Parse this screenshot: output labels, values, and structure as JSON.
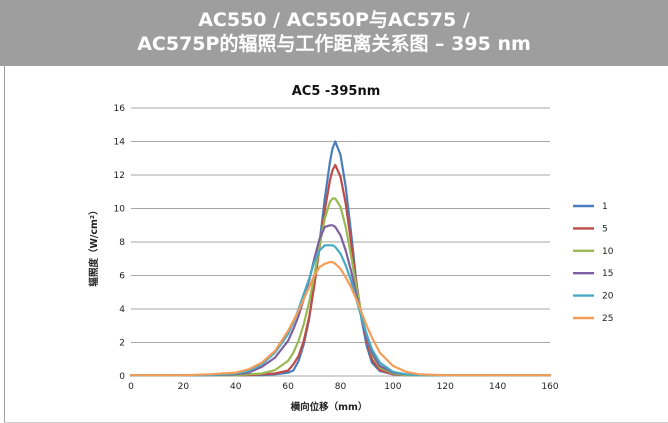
{
  "header": {
    "title_line1": "AC550 / AC550P与AC575 /",
    "title_line2": "AC575P的辐照与工作距离关系图 – 395 nm",
    "bg_color": "#9e9e9e"
  },
  "chart_data": {
    "type": "line",
    "title": "AC5 -395nm",
    "xlabel": "横向位移（mm）",
    "ylabel": "辐照度（W/cm²）",
    "xlim": [
      0,
      160
    ],
    "ylim": [
      0,
      16
    ],
    "x_ticks": [
      0,
      20,
      40,
      60,
      80,
      100,
      120,
      140,
      160
    ],
    "y_ticks": [
      0,
      2,
      4,
      6,
      8,
      10,
      12,
      14,
      16
    ],
    "grid": "horizontal",
    "legend_position": "right",
    "x": [
      0,
      10,
      20,
      30,
      40,
      45,
      50,
      55,
      60,
      62,
      64,
      66,
      68,
      70,
      72,
      74,
      76,
      77,
      78,
      80,
      82,
      84,
      86,
      88,
      90,
      92,
      95,
      100,
      105,
      110,
      120,
      130,
      140,
      160
    ],
    "series": [
      {
        "name": "1",
        "color": "#4a7ebb",
        "peak_x": 77.5,
        "values": [
          0.05,
          0.05,
          0.05,
          0.05,
          0.05,
          0.05,
          0.05,
          0.1,
          0.2,
          0.33,
          0.9,
          1.9,
          3.4,
          5.5,
          8.0,
          10.6,
          12.8,
          13.6,
          14.0,
          13.2,
          11.3,
          8.6,
          5.7,
          3.4,
          1.8,
          0.8,
          0.3,
          0.1,
          0.05,
          0.05,
          0.05,
          0.05,
          0.05,
          0.05
        ]
      },
      {
        "name": "5",
        "color": "#be4b48",
        "peak_x": 77.5,
        "values": [
          0.05,
          0.05,
          0.05,
          0.05,
          0.05,
          0.05,
          0.1,
          0.15,
          0.32,
          0.7,
          1.2,
          2.1,
          3.5,
          5.4,
          7.7,
          9.9,
          11.7,
          12.3,
          12.6,
          11.9,
          10.3,
          8.0,
          5.6,
          3.6,
          2.1,
          1.0,
          0.35,
          0.1,
          0.05,
          0.05,
          0.05,
          0.05,
          0.05,
          0.05
        ]
      },
      {
        "name": "10",
        "color": "#98b954",
        "peak_x": 77.0,
        "values": [
          0.05,
          0.05,
          0.05,
          0.05,
          0.05,
          0.1,
          0.15,
          0.35,
          0.9,
          1.4,
          2.1,
          3.1,
          4.4,
          6.0,
          7.8,
          9.4,
          10.4,
          10.6,
          10.6,
          10.1,
          8.9,
          7.2,
          5.4,
          3.7,
          2.3,
          1.3,
          0.5,
          0.15,
          0.05,
          0.05,
          0.05,
          0.05,
          0.05,
          0.05
        ]
      },
      {
        "name": "15",
        "color": "#7d60a0",
        "peak_x": 75.5,
        "values": [
          0.05,
          0.05,
          0.05,
          0.05,
          0.1,
          0.2,
          0.55,
          1.1,
          2.1,
          2.8,
          3.6,
          4.6,
          5.7,
          7.0,
          8.2,
          8.9,
          9.0,
          9.0,
          8.9,
          8.4,
          7.5,
          6.3,
          4.9,
          3.5,
          2.3,
          1.4,
          0.6,
          0.2,
          0.1,
          0.05,
          0.05,
          0.05,
          0.05,
          0.05
        ]
      },
      {
        "name": "20",
        "color": "#46aac5",
        "peak_x": 75.5,
        "values": [
          0.05,
          0.05,
          0.05,
          0.05,
          0.15,
          0.3,
          0.7,
          1.4,
          2.5,
          3.2,
          4.0,
          4.9,
          5.8,
          6.8,
          7.5,
          7.8,
          7.8,
          7.8,
          7.7,
          7.3,
          6.6,
          5.7,
          4.6,
          3.5,
          2.5,
          1.6,
          0.8,
          0.25,
          0.1,
          0.05,
          0.05,
          0.05,
          0.05,
          0.05
        ]
      },
      {
        "name": "25",
        "color": "#f59d56",
        "peak_x": 75.0,
        "values": [
          0.05,
          0.05,
          0.05,
          0.1,
          0.2,
          0.4,
          0.8,
          1.5,
          2.7,
          3.3,
          3.9,
          4.6,
          5.3,
          6.0,
          6.5,
          6.7,
          6.8,
          6.8,
          6.7,
          6.4,
          5.9,
          5.3,
          4.6,
          3.8,
          3.0,
          2.3,
          1.4,
          0.6,
          0.25,
          0.1,
          0.05,
          0.05,
          0.05,
          0.05
        ]
      }
    ]
  }
}
